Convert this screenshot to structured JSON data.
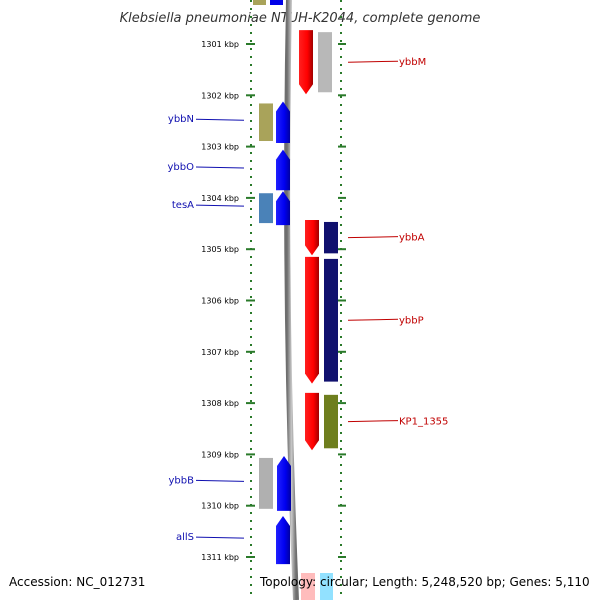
{
  "title": "Klebsiella pneumoniae NTUH-K2044, complete genome",
  "footer": {
    "accession": "Accession: NC_012731",
    "topology": "Topology: circular; Length: 5,248,520 bp; Genes: 5,110"
  },
  "ruler": [
    {
      "label": "1301 kbp"
    },
    {
      "label": "1302 kbp"
    },
    {
      "label": "1303 kbp"
    },
    {
      "label": "1304 kbp"
    },
    {
      "label": "1305 kbp"
    },
    {
      "label": "1306 kbp"
    },
    {
      "label": "1307 kbp"
    },
    {
      "label": "1308 kbp"
    },
    {
      "label": "1309 kbp"
    },
    {
      "label": "1310 kbp"
    },
    {
      "label": "1311 kbp"
    }
  ],
  "genes_left": [
    {
      "name": "ybbN",
      "start_kbp": 1302.12,
      "end_kbp": 1302.93,
      "cog_color": "#a9a35a"
    },
    {
      "name": "ybbO",
      "start_kbp": 1303.06,
      "end_kbp": 1303.85,
      "cog_color": null
    },
    {
      "name": "tesA",
      "start_kbp": 1303.87,
      "end_kbp": 1304.53,
      "cog_color": "#4a82b8"
    },
    {
      "name": "ybbB",
      "start_kbp": 1309.03,
      "end_kbp": 1310.1,
      "cog_color": "#b0b0b0"
    },
    {
      "name": "allS",
      "start_kbp": 1310.2,
      "end_kbp": 1311.14,
      "cog_color": null
    }
  ],
  "genes_right": [
    {
      "name": "ybbM",
      "start_kbp": 1300.73,
      "end_kbp": 1301.98,
      "cog_color": "#b8b8b8"
    },
    {
      "name": "ybbA",
      "start_kbp": 1304.43,
      "end_kbp": 1305.12,
      "cog_color": "#10106e"
    },
    {
      "name": "ybbP",
      "start_kbp": 1305.15,
      "end_kbp": 1307.62,
      "cog_color": "#10106e"
    },
    {
      "name": "KP1_1355",
      "start_kbp": 1307.8,
      "end_kbp": 1308.92,
      "cog_color": "#6e7e1e"
    }
  ],
  "colors": {
    "forward_strand": "#e00000",
    "reverse_strand": "#0000e8",
    "backbone": "#8a8a8a",
    "tick": "#2a7a2a",
    "left_label": "#1010b0",
    "right_label": "#c00000"
  }
}
